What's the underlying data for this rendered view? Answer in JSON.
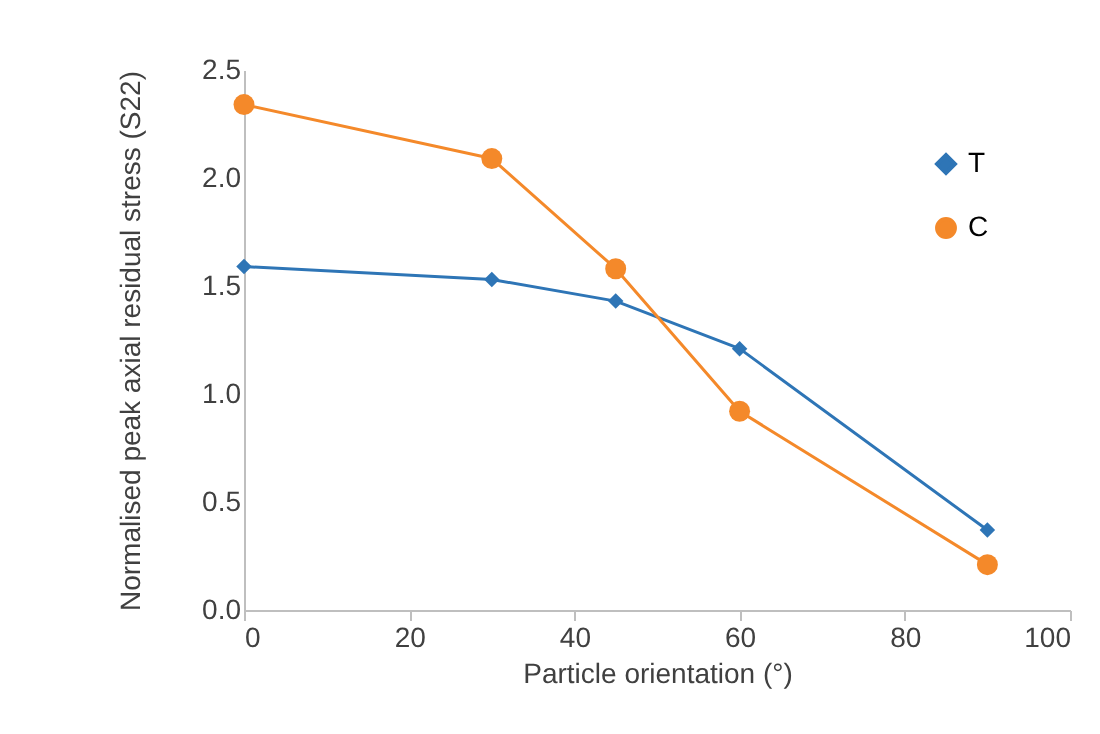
{
  "chart_data": {
    "type": "line",
    "xlabel": "Particle orientation (°)",
    "ylabel": "Normalised peak axial residual stress (S22)",
    "x": [
      0,
      30,
      45,
      60,
      90
    ],
    "series": [
      {
        "name": "T",
        "color": "#2e75b6",
        "marker": "diamond",
        "values": [
          1.59,
          1.53,
          1.43,
          1.21,
          0.37
        ]
      },
      {
        "name": "C",
        "color": "#f4892a",
        "marker": "circle",
        "values": [
          2.34,
          2.09,
          1.58,
          0.92,
          0.21
        ]
      }
    ],
    "xlim": [
      0,
      100
    ],
    "xticks": [
      0,
      20,
      40,
      60,
      80,
      100
    ],
    "ylim": [
      0,
      2.5
    ],
    "yticks": [
      {
        "value": 0,
        "label": "0.0"
      },
      {
        "value": 0.5,
        "label": "0.5"
      },
      {
        "value": 1,
        "label": "1.0"
      },
      {
        "value": 1.5,
        "label": "1.5"
      },
      {
        "value": 2,
        "label": "2.0"
      },
      {
        "value": 2.5,
        "label": "2.5"
      }
    ],
    "grid": false,
    "legend": "top right",
    "line_style": "solid"
  }
}
